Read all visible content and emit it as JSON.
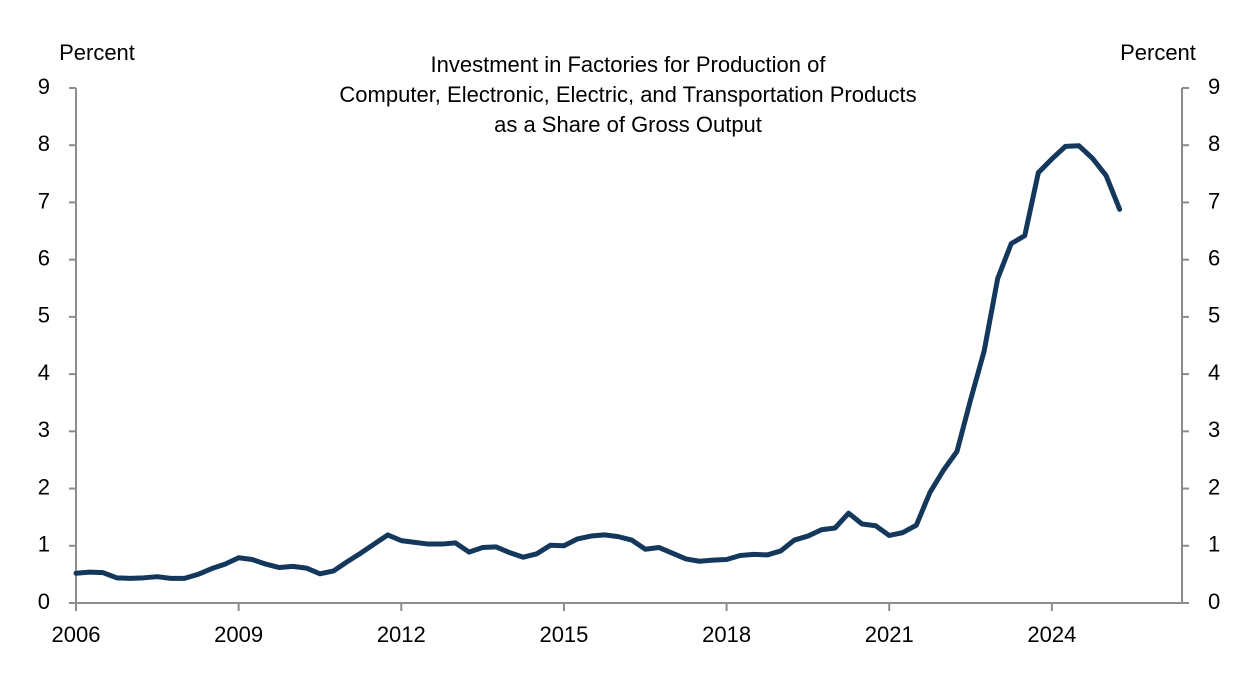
{
  "chart_data": {
    "type": "line",
    "title": [
      "Investment in Factories for Production of",
      "Computer, Electronic, Electric, and Transportation Products",
      "as a Share of Gross Output"
    ],
    "ylabel": "Percent",
    "y2label": "Percent",
    "x": [
      2006.0,
      2006.25,
      2006.5,
      2006.75,
      2007.0,
      2007.25,
      2007.5,
      2007.75,
      2008.0,
      2008.25,
      2008.5,
      2008.75,
      2009.0,
      2009.25,
      2009.5,
      2009.75,
      2010.0,
      2010.25,
      2010.5,
      2010.75,
      2011.0,
      2011.25,
      2011.5,
      2011.75,
      2012.0,
      2012.25,
      2012.5,
      2012.75,
      2013.0,
      2013.25,
      2013.5,
      2013.75,
      2014.0,
      2014.25,
      2014.5,
      2014.75,
      2015.0,
      2015.25,
      2015.5,
      2015.75,
      2016.0,
      2016.25,
      2016.5,
      2016.75,
      2017.0,
      2017.25,
      2017.5,
      2017.75,
      2018.0,
      2018.25,
      2018.5,
      2018.75,
      2019.0,
      2019.25,
      2019.5,
      2019.75,
      2020.0,
      2020.25,
      2020.5,
      2020.75,
      2021.0,
      2021.25,
      2021.5,
      2021.75,
      2022.0,
      2022.25,
      2022.5,
      2022.75,
      2023.0,
      2023.25,
      2023.5,
      2023.75,
      2024.0,
      2024.25,
      2024.5,
      2024.75,
      2025.0,
      2025.25
    ],
    "series": [
      {
        "color": "#14375c",
        "values": [
          0.52,
          0.54,
          0.53,
          0.44,
          0.43,
          0.44,
          0.46,
          0.43,
          0.43,
          0.5,
          0.6,
          0.68,
          0.79,
          0.76,
          0.68,
          0.62,
          0.64,
          0.61,
          0.51,
          0.56,
          0.72,
          0.87,
          1.03,
          1.19,
          1.09,
          1.06,
          1.03,
          1.03,
          1.05,
          0.89,
          0.97,
          0.98,
          0.88,
          0.8,
          0.86,
          1.01,
          1.0,
          1.12,
          1.17,
          1.19,
          1.16,
          1.1,
          0.94,
          0.97,
          0.87,
          0.77,
          0.73,
          0.75,
          0.76,
          0.83,
          0.85,
          0.84,
          0.91,
          1.1,
          1.17,
          1.28,
          1.31,
          1.57,
          1.38,
          1.35,
          1.18,
          1.23,
          1.36,
          1.93,
          2.32,
          2.65,
          3.55,
          4.4,
          5.67,
          6.28,
          6.42,
          7.52,
          7.76,
          7.98,
          7.99,
          7.77,
          7.47,
          6.88
        ]
      }
    ],
    "xlim": [
      2006,
      2026.4
    ],
    "xticks": [
      2006,
      2009,
      2012,
      2015,
      2018,
      2021,
      2024
    ],
    "ylim": [
      0,
      9
    ],
    "yticks": [
      0,
      1,
      2,
      3,
      4,
      5,
      6,
      7,
      8,
      9
    ],
    "y2lim": [
      0,
      9
    ],
    "y2ticks": [
      0,
      1,
      2,
      3,
      4,
      5,
      6,
      7,
      8,
      9
    ]
  }
}
